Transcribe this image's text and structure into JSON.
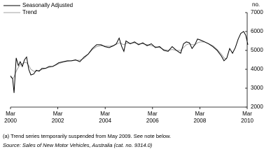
{
  "chart_data": {
    "type": "line",
    "y_axis_label": "no.",
    "footnote": "(a) Trend series temporarily suspended from May 2009. See note below.",
    "source": "Source: Sales of New Motor Vehicles, Australia (cat. no. 9314.0)",
    "x": [
      2000.17,
      2000.26,
      2000.32,
      2000.41,
      2000.5,
      2000.58,
      2000.67,
      2000.76,
      2000.85,
      2000.94,
      2001.03,
      2001.15,
      2001.26,
      2001.38,
      2001.5,
      2001.65,
      2001.8,
      2001.95,
      2002.09,
      2002.21,
      2002.39,
      2002.57,
      2002.74,
      2002.92,
      2003.1,
      2003.28,
      2003.45,
      2003.63,
      2003.81,
      2003.99,
      2004.16,
      2004.34,
      2004.52,
      2004.64,
      2004.76,
      2004.87,
      2004.96,
      2005.05,
      2005.23,
      2005.41,
      2005.58,
      2005.76,
      2005.94,
      2006.12,
      2006.29,
      2006.47,
      2006.65,
      2006.83,
      2007.0,
      2007.18,
      2007.36,
      2007.48,
      2007.6,
      2007.73,
      2007.84,
      2007.96,
      2008.07,
      2008.19,
      2008.37,
      2008.54,
      2008.72,
      2008.9,
      2009.08,
      2009.19,
      2009.31,
      2009.43,
      2009.55,
      2009.67,
      2009.79,
      2009.9,
      2010.02,
      2010.11,
      2010.2
    ],
    "series": [
      {
        "name": "Seasonally Adjusted",
        "color": "#000000",
        "values": [
          3650,
          3500,
          2750,
          4600,
          4200,
          4400,
          4150,
          4500,
          4650,
          4000,
          3700,
          3750,
          3950,
          3900,
          4050,
          4050,
          4150,
          4150,
          4250,
          4350,
          4400,
          4450,
          4450,
          4500,
          4400,
          4650,
          4800,
          5100,
          5300,
          5300,
          5200,
          5150,
          5250,
          5350,
          5650,
          5200,
          4950,
          5500,
          5350,
          5450,
          5300,
          5400,
          5250,
          5350,
          5150,
          5200,
          5000,
          4950,
          5200,
          5000,
          4850,
          5350,
          5450,
          5400,
          5100,
          5300,
          5600,
          5550,
          5450,
          5350,
          5200,
          5000,
          4700,
          4450,
          4600,
          5100,
          4850,
          5150,
          5600,
          5900,
          6000,
          5800,
          5300
        ]
      },
      {
        "name": "Trend",
        "color": "#a0a0a0",
        "values": [
          3600,
          3500,
          3600,
          3900,
          4100,
          4250,
          4300,
          4350,
          4350,
          4200,
          4000,
          3900,
          3900,
          3950,
          3980,
          4050,
          4100,
          4150,
          4220,
          4300,
          4380,
          4420,
          4450,
          4470,
          4480,
          4580,
          4800,
          5050,
          5200,
          5250,
          5230,
          5220,
          5250,
          5320,
          5400,
          5350,
          5300,
          5380,
          5380,
          5400,
          5350,
          5350,
          5300,
          5250,
          5200,
          5150,
          5050,
          5000,
          5050,
          5000,
          5000,
          5150,
          5300,
          5350,
          5300,
          5300,
          5400,
          5450,
          5450,
          5350,
          5250,
          5050,
          4800,
          4600,
          4550,
          null,
          null,
          null,
          null,
          null,
          null,
          null,
          null
        ]
      }
    ],
    "xlim": [
      2000.17,
      2010.17
    ],
    "xticks": [
      {
        "value": 2000.17,
        "label": "Mar 2000"
      },
      {
        "value": 2002.17,
        "label": "Mar 2002"
      },
      {
        "value": 2004.17,
        "label": "Mar 2004"
      },
      {
        "value": 2006.17,
        "label": "Mar 2006"
      },
      {
        "value": 2008.17,
        "label": "Mar 2008"
      },
      {
        "value": 2010.17,
        "label": "Mar 2010"
      }
    ],
    "ylim": [
      2000,
      7000
    ],
    "yticks": [
      2000,
      3000,
      4000,
      5000,
      6000,
      7000
    ],
    "y_axis_side": "right",
    "legend_position": "top-left",
    "grid": false
  }
}
